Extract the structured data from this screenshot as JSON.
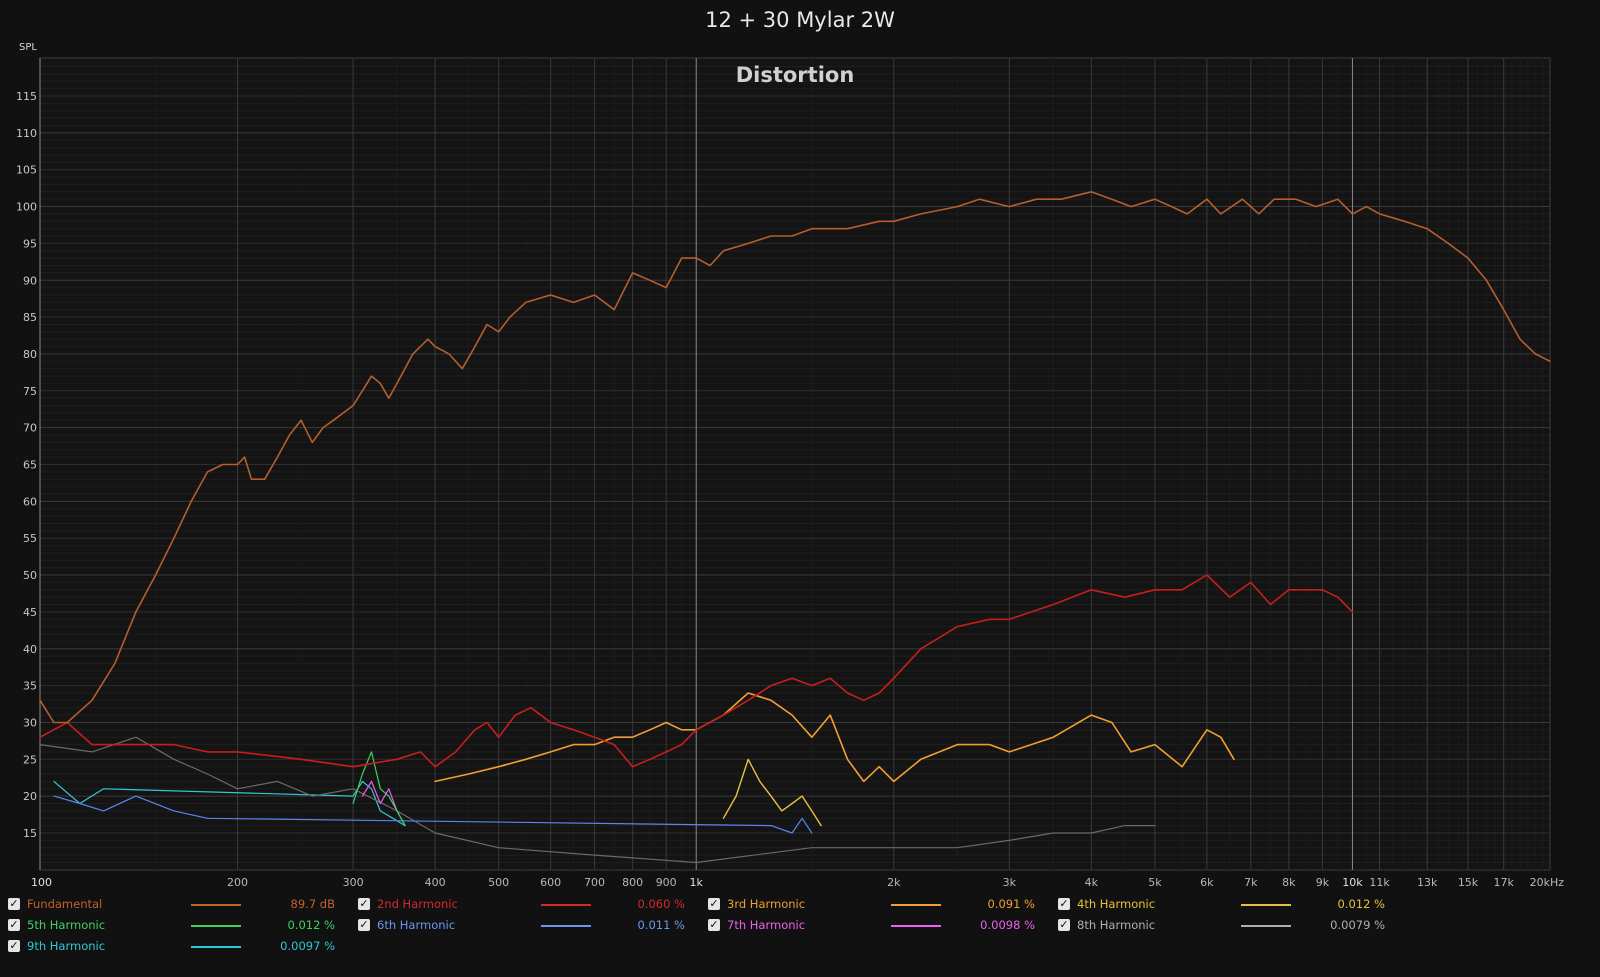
{
  "chart_data": {
    "type": "line",
    "title": "12 + 30 Mylar 2W",
    "subtitle": "Distortion",
    "ylabel": "SPL",
    "xlabel": "",
    "x_scale": "log",
    "xlim": [
      100,
      20000
    ],
    "ylim": [
      10,
      120
    ],
    "x_ticks": [
      {
        "value": 100,
        "label": "100",
        "major": true
      },
      {
        "value": 200,
        "label": "200"
      },
      {
        "value": 300,
        "label": "300"
      },
      {
        "value": 400,
        "label": "400"
      },
      {
        "value": 500,
        "label": "500"
      },
      {
        "value": 600,
        "label": "600"
      },
      {
        "value": 700,
        "label": "700"
      },
      {
        "value": 800,
        "label": "800"
      },
      {
        "value": 900,
        "label": "900"
      },
      {
        "value": 1000,
        "label": "1k",
        "major": true
      },
      {
        "value": 2000,
        "label": "2k"
      },
      {
        "value": 3000,
        "label": "3k"
      },
      {
        "value": 4000,
        "label": "4k"
      },
      {
        "value": 5000,
        "label": "5k"
      },
      {
        "value": 6000,
        "label": "6k"
      },
      {
        "value": 7000,
        "label": "7k"
      },
      {
        "value": 8000,
        "label": "8k"
      },
      {
        "value": 9000,
        "label": "9k"
      },
      {
        "value": 10000,
        "label": "10k",
        "major": true
      },
      {
        "value": 11000,
        "label": "11k"
      },
      {
        "value": 13000,
        "label": "13k"
      },
      {
        "value": 15000,
        "label": "15k"
      },
      {
        "value": 17000,
        "label": "17k"
      },
      {
        "value": 20000,
        "label": "20kHz"
      }
    ],
    "y_ticks": [
      "115",
      "110",
      "105",
      "100",
      "95",
      "90",
      "85",
      "80",
      "75",
      "70",
      "65",
      "60",
      "55",
      "50",
      "45",
      "40",
      "35",
      "30",
      "25",
      "20",
      "15"
    ],
    "series": [
      {
        "name": "Fundamental",
        "color": "#b45f2d",
        "width": 1.6,
        "points": [
          [
            100,
            33
          ],
          [
            105,
            30
          ],
          [
            110,
            30
          ],
          [
            120,
            33
          ],
          [
            130,
            38
          ],
          [
            140,
            45
          ],
          [
            150,
            50
          ],
          [
            160,
            55
          ],
          [
            170,
            60
          ],
          [
            180,
            64
          ],
          [
            190,
            65
          ],
          [
            200,
            65
          ],
          [
            205,
            66
          ],
          [
            210,
            63
          ],
          [
            220,
            63
          ],
          [
            230,
            66
          ],
          [
            240,
            69
          ],
          [
            250,
            71
          ],
          [
            260,
            68
          ],
          [
            270,
            70
          ],
          [
            280,
            71
          ],
          [
            300,
            73
          ],
          [
            310,
            75
          ],
          [
            320,
            77
          ],
          [
            330,
            76
          ],
          [
            340,
            74
          ],
          [
            350,
            76
          ],
          [
            370,
            80
          ],
          [
            390,
            82
          ],
          [
            400,
            81
          ],
          [
            420,
            80
          ],
          [
            440,
            78
          ],
          [
            460,
            81
          ],
          [
            480,
            84
          ],
          [
            500,
            83
          ],
          [
            520,
            85
          ],
          [
            550,
            87
          ],
          [
            600,
            88
          ],
          [
            650,
            87
          ],
          [
            700,
            88
          ],
          [
            750,
            86
          ],
          [
            800,
            91
          ],
          [
            850,
            90
          ],
          [
            900,
            89
          ],
          [
            950,
            93
          ],
          [
            1000,
            93
          ],
          [
            1050,
            92
          ],
          [
            1100,
            94
          ],
          [
            1200,
            95
          ],
          [
            1300,
            96
          ],
          [
            1400,
            96
          ],
          [
            1500,
            97
          ],
          [
            1700,
            97
          ],
          [
            1900,
            98
          ],
          [
            2000,
            98
          ],
          [
            2200,
            99
          ],
          [
            2500,
            100
          ],
          [
            2700,
            101
          ],
          [
            3000,
            100
          ],
          [
            3300,
            101
          ],
          [
            3600,
            101
          ],
          [
            4000,
            102
          ],
          [
            4300,
            101
          ],
          [
            4600,
            100
          ],
          [
            5000,
            101
          ],
          [
            5300,
            100
          ],
          [
            5600,
            99
          ],
          [
            6000,
            101
          ],
          [
            6300,
            99
          ],
          [
            6800,
            101
          ],
          [
            7200,
            99
          ],
          [
            7600,
            101
          ],
          [
            8200,
            101
          ],
          [
            8800,
            100
          ],
          [
            9500,
            101
          ],
          [
            10000,
            99
          ],
          [
            10500,
            100
          ],
          [
            11000,
            99
          ],
          [
            12000,
            98
          ],
          [
            13000,
            97
          ],
          [
            14000,
            95
          ],
          [
            15000,
            93
          ],
          [
            16000,
            90
          ],
          [
            17000,
            86
          ],
          [
            18000,
            82
          ],
          [
            19000,
            80
          ],
          [
            20000,
            79
          ]
        ]
      },
      {
        "name": "2nd Harmonic",
        "color": "#c81e1e",
        "width": 1.6,
        "points": [
          [
            100,
            28
          ],
          [
            110,
            30
          ],
          [
            120,
            27
          ],
          [
            140,
            27
          ],
          [
            160,
            27
          ],
          [
            180,
            26
          ],
          [
            200,
            26
          ],
          [
            250,
            25
          ],
          [
            300,
            24
          ],
          [
            350,
            25
          ],
          [
            380,
            26
          ],
          [
            400,
            24
          ],
          [
            430,
            26
          ],
          [
            460,
            29
          ],
          [
            480,
            30
          ],
          [
            500,
            28
          ],
          [
            530,
            31
          ],
          [
            560,
            32
          ],
          [
            600,
            30
          ],
          [
            650,
            29
          ],
          [
            700,
            28
          ],
          [
            750,
            27
          ],
          [
            800,
            24
          ],
          [
            850,
            25
          ],
          [
            900,
            26
          ],
          [
            950,
            27
          ],
          [
            1000,
            29
          ],
          [
            1100,
            31
          ],
          [
            1200,
            33
          ],
          [
            1300,
            35
          ],
          [
            1400,
            36
          ],
          [
            1500,
            35
          ],
          [
            1600,
            36
          ],
          [
            1700,
            34
          ],
          [
            1800,
            33
          ],
          [
            1900,
            34
          ],
          [
            2000,
            36
          ],
          [
            2200,
            40
          ],
          [
            2500,
            43
          ],
          [
            2800,
            44
          ],
          [
            3000,
            44
          ],
          [
            3500,
            46
          ],
          [
            4000,
            48
          ],
          [
            4500,
            47
          ],
          [
            5000,
            48
          ],
          [
            5500,
            48
          ],
          [
            6000,
            50
          ],
          [
            6500,
            47
          ],
          [
            7000,
            49
          ],
          [
            7500,
            46
          ],
          [
            8000,
            48
          ],
          [
            8500,
            48
          ],
          [
            9000,
            48
          ],
          [
            9500,
            47
          ],
          [
            10000,
            45
          ]
        ]
      },
      {
        "name": "3rd Harmonic",
        "color": "#f0a030",
        "width": 1.6,
        "points": [
          [
            400,
            22
          ],
          [
            450,
            23
          ],
          [
            500,
            24
          ],
          [
            550,
            25
          ],
          [
            600,
            26
          ],
          [
            650,
            27
          ],
          [
            700,
            27
          ],
          [
            750,
            28
          ],
          [
            800,
            28
          ],
          [
            850,
            29
          ],
          [
            900,
            30
          ],
          [
            950,
            29
          ],
          [
            1000,
            29
          ],
          [
            1100,
            31
          ],
          [
            1200,
            34
          ],
          [
            1300,
            33
          ],
          [
            1400,
            31
          ],
          [
            1500,
            28
          ],
          [
            1600,
            31
          ],
          [
            1700,
            25
          ],
          [
            1800,
            22
          ],
          [
            1900,
            24
          ],
          [
            2000,
            22
          ],
          [
            2200,
            25
          ],
          [
            2500,
            27
          ],
          [
            2800,
            27
          ],
          [
            3000,
            26
          ],
          [
            3500,
            28
          ],
          [
            4000,
            31
          ],
          [
            4300,
            30
          ],
          [
            4600,
            26
          ],
          [
            5000,
            27
          ],
          [
            5500,
            24
          ],
          [
            6000,
            29
          ],
          [
            6300,
            28
          ],
          [
            6600,
            25
          ]
        ]
      },
      {
        "name": "4th Harmonic",
        "color": "#e8c040",
        "width": 1.4,
        "points": [
          [
            1100,
            17
          ],
          [
            1150,
            20
          ],
          [
            1200,
            25
          ],
          [
            1250,
            22
          ],
          [
            1300,
            20
          ],
          [
            1350,
            18
          ],
          [
            1400,
            19
          ],
          [
            1450,
            20
          ],
          [
            1500,
            18
          ],
          [
            1550,
            16
          ]
        ]
      },
      {
        "name": "5th Harmonic",
        "color": "#40d060",
        "width": 1.2,
        "points": [
          [
            300,
            19
          ],
          [
            310,
            23
          ],
          [
            320,
            26
          ],
          [
            330,
            21
          ],
          [
            340,
            20
          ],
          [
            350,
            18
          ],
          [
            360,
            16
          ]
        ]
      },
      {
        "name": "6th Harmonic",
        "color": "#5588ee",
        "width": 1.2,
        "points": [
          [
            105,
            20
          ],
          [
            115,
            19
          ],
          [
            125,
            18
          ],
          [
            140,
            20
          ],
          [
            160,
            18
          ],
          [
            180,
            17
          ],
          [
            1300,
            16
          ],
          [
            1400,
            15
          ],
          [
            1450,
            17
          ],
          [
            1500,
            15
          ]
        ]
      },
      {
        "name": "7th Harmonic",
        "color": "#ee60ee",
        "width": 1.2,
        "points": [
          [
            310,
            20
          ],
          [
            320,
            22
          ],
          [
            330,
            19
          ],
          [
            340,
            21
          ],
          [
            350,
            18
          ],
          [
            360,
            16
          ]
        ]
      },
      {
        "name": "8th Harmonic",
        "color": "#6a6a6a",
        "width": 1.2,
        "points": [
          [
            100,
            27
          ],
          [
            120,
            26
          ],
          [
            140,
            28
          ],
          [
            160,
            25
          ],
          [
            180,
            23
          ],
          [
            200,
            21
          ],
          [
            230,
            22
          ],
          [
            260,
            20
          ],
          [
            300,
            21
          ],
          [
            350,
            18
          ],
          [
            400,
            15
          ],
          [
            500,
            13
          ],
          [
            700,
            12
          ],
          [
            1000,
            11
          ],
          [
            1500,
            13
          ],
          [
            2000,
            13
          ],
          [
            2500,
            13
          ],
          [
            3000,
            14
          ],
          [
            3500,
            15
          ],
          [
            4000,
            15
          ],
          [
            4500,
            16
          ],
          [
            5000,
            16
          ]
        ]
      },
      {
        "name": "9th Harmonic",
        "color": "#30c8d8",
        "width": 1.2,
        "points": [
          [
            105,
            22
          ],
          [
            115,
            19
          ],
          [
            125,
            21
          ],
          [
            300,
            20
          ],
          [
            310,
            22
          ],
          [
            320,
            21
          ],
          [
            330,
            18
          ],
          [
            345,
            17
          ],
          [
            360,
            16
          ]
        ]
      }
    ],
    "legend": [
      {
        "name": "Fundamental",
        "value": "89.7 dB",
        "color": "#c0622c",
        "checked": true
      },
      {
        "name": "2nd Harmonic",
        "value": "0.060 %",
        "color": "#d42a2a",
        "checked": true
      },
      {
        "name": "3rd Harmonic",
        "value": "0.091 %",
        "color": "#f0a030",
        "checked": true
      },
      {
        "name": "4th Harmonic",
        "value": "0.012 %",
        "color": "#e8c040",
        "checked": true
      },
      {
        "name": "5th Harmonic",
        "value": "0.012 %",
        "color": "#40d060",
        "checked": true
      },
      {
        "name": "6th Harmonic",
        "value": "0.011 %",
        "color": "#6a98f0",
        "checked": true
      },
      {
        "name": "7th Harmonic",
        "value": "0.0098 %",
        "color": "#ee60ee",
        "checked": true
      },
      {
        "name": "8th Harmonic",
        "value": "0.0079 %",
        "color": "#b0b0b0",
        "checked": true
      },
      {
        "name": "9th Harmonic",
        "value": "0.0097 %",
        "color": "#30c8d8",
        "checked": true
      }
    ],
    "grid": true,
    "legend_placement": "bottom"
  }
}
